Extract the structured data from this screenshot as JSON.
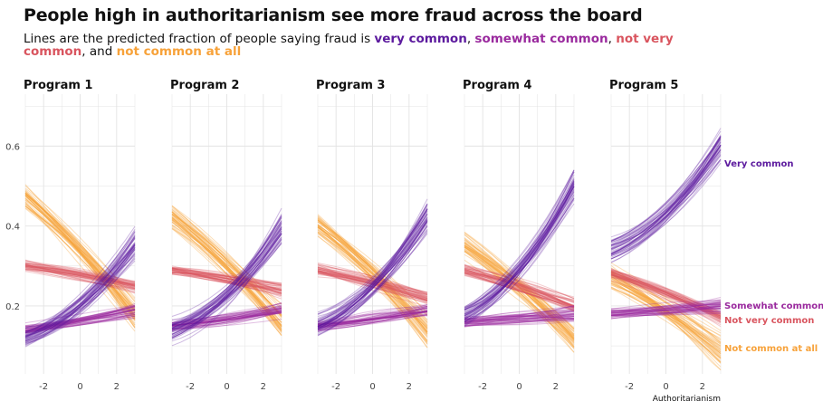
{
  "title": "People high in authoritarianism see more fraud across the board",
  "subtitle": {
    "prefix": "Lines are the predicted fraction of people saying fraud is ",
    "very_common": "very common",
    "sep1": ", ",
    "somewhat_common": "somewhat common",
    "sep2": ", ",
    "not_very_common": "not very common",
    "sep3": ", and ",
    "not_common_at_all": "not common at all"
  },
  "colors": {
    "very_common": "#5c1a9e",
    "somewhat_common": "#9a2a9e",
    "not_very_common": "#d9555f",
    "not_common_at_all": "#f7a23a",
    "grid": "#e3e3e3"
  },
  "chart_data": {
    "type": "line",
    "facets": [
      "Program 1",
      "Program 2",
      "Program 3",
      "Program 4",
      "Program 5"
    ],
    "xlabel": "Authoritarianism",
    "ylabel": "",
    "xlim": [
      -3,
      3
    ],
    "ylim": [
      0.03,
      0.73
    ],
    "xticks": [
      -2,
      0,
      2
    ],
    "yticks": [
      0.2,
      0.4,
      0.6
    ],
    "ytick_labels": [
      "0.2",
      "0.4",
      "0.6"
    ],
    "xtick_labels": [
      "-2",
      "0",
      "2"
    ],
    "series_labels_shown_on": "Program 5 (right edge)",
    "series": [
      {
        "key": "very_common",
        "name": "Very common",
        "mean_start": [
          0.12,
          0.14,
          0.15,
          0.18,
          0.34
        ],
        "mean_end": [
          0.36,
          0.4,
          0.42,
          0.5,
          0.6
        ]
      },
      {
        "key": "somewhat_common",
        "name": "Somewhat common",
        "mean_start": [
          0.14,
          0.15,
          0.15,
          0.16,
          0.18
        ],
        "mean_end": [
          0.19,
          0.19,
          0.19,
          0.18,
          0.2
        ]
      },
      {
        "key": "not_very_common",
        "name": "Not very common",
        "mean_start": [
          0.3,
          0.29,
          0.29,
          0.29,
          0.28
        ],
        "mean_end": [
          0.25,
          0.24,
          0.22,
          0.2,
          0.17
        ]
      },
      {
        "key": "not_common_at_all",
        "name": "Not common at all",
        "mean_start": [
          0.47,
          0.42,
          0.4,
          0.35,
          0.27
        ],
        "mean_end": [
          0.18,
          0.16,
          0.14,
          0.12,
          0.09
        ]
      }
    ],
    "draws_per_series": 45
  }
}
